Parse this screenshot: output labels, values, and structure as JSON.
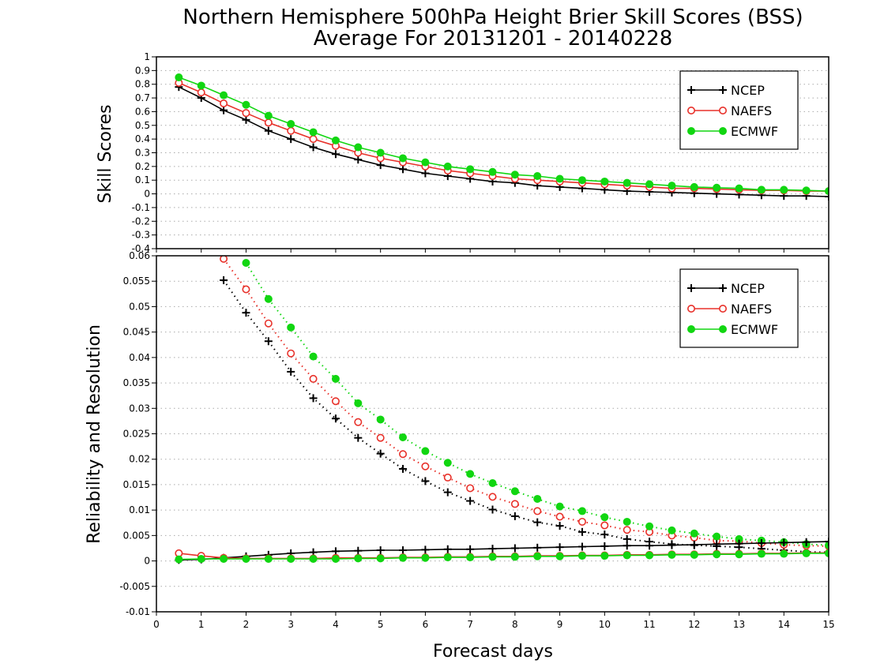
{
  "title": {
    "line1": "Northern Hemisphere 500hPa Height Brier Skill Scores (BSS)",
    "line2": "Average For 20131201 - 20140228"
  },
  "colors": {
    "NCEP": "#000000",
    "NAEFS": "#e8312a",
    "ECMWF": "#11d611"
  },
  "chart_data": [
    {
      "type": "line",
      "ylabel": "Skill Scores",
      "xlabel": "",
      "xlim": [
        0,
        15
      ],
      "ylim": [
        -0.4,
        1
      ],
      "grid": true,
      "legend_position": "top-right",
      "yticks": [
        -0.4,
        -0.3,
        -0.2,
        -0.1,
        0,
        0.1,
        0.2,
        0.3,
        0.4,
        0.5,
        0.6,
        0.7,
        0.8,
        0.9,
        1
      ],
      "ytick_labels": [
        "-0.4",
        "-0.3",
        "-0.2",
        "-0.1",
        "0",
        "0.1",
        "0.2",
        "0.3",
        "0.4",
        "0.5",
        "0.6",
        "0.7",
        "0.8",
        "0.9",
        "1"
      ],
      "x": [
        0.5,
        1,
        1.5,
        2,
        2.5,
        3,
        3.5,
        4,
        4.5,
        5,
        5.5,
        6,
        6.5,
        7,
        7.5,
        8,
        8.5,
        9,
        9.5,
        10,
        10.5,
        11,
        11.5,
        12,
        12.5,
        13,
        13.5,
        14,
        14.5,
        15
      ],
      "series": [
        {
          "name": "NCEP",
          "marker": "plus",
          "line": "solid",
          "values": [
            0.78,
            0.7,
            0.61,
            0.54,
            0.46,
            0.4,
            0.34,
            0.29,
            0.25,
            0.21,
            0.18,
            0.15,
            0.13,
            0.11,
            0.09,
            0.08,
            0.06,
            0.05,
            0.04,
            0.03,
            0.02,
            0.015,
            0.01,
            0.005,
            0.0,
            -0.005,
            -0.01,
            -0.015,
            -0.015,
            -0.02
          ]
        },
        {
          "name": "NAEFS",
          "marker": "open-circle",
          "line": "solid",
          "values": [
            0.81,
            0.74,
            0.66,
            0.59,
            0.52,
            0.46,
            0.4,
            0.35,
            0.3,
            0.26,
            0.23,
            0.2,
            0.17,
            0.15,
            0.13,
            0.11,
            0.1,
            0.09,
            0.08,
            0.07,
            0.06,
            0.05,
            0.04,
            0.04,
            0.035,
            0.03,
            0.025,
            0.025,
            0.02,
            0.02
          ]
        },
        {
          "name": "ECMWF",
          "marker": "filled-circle",
          "line": "solid",
          "values": [
            0.85,
            0.79,
            0.72,
            0.65,
            0.57,
            0.51,
            0.45,
            0.39,
            0.34,
            0.3,
            0.26,
            0.23,
            0.2,
            0.18,
            0.16,
            0.14,
            0.13,
            0.11,
            0.1,
            0.09,
            0.08,
            0.07,
            0.06,
            0.05,
            0.045,
            0.04,
            0.03,
            0.03,
            0.025,
            0.02
          ]
        }
      ]
    },
    {
      "type": "line",
      "ylabel": "Reliability and Resolution",
      "xlabel": "Forecast days",
      "xlim": [
        0,
        15
      ],
      "ylim": [
        -0.01,
        0.06
      ],
      "grid": true,
      "legend_position": "top-right",
      "xticks": [
        0,
        1,
        2,
        3,
        4,
        5,
        6,
        7,
        8,
        9,
        10,
        11,
        12,
        13,
        14,
        15
      ],
      "xtick_labels": [
        "0",
        "1",
        "2",
        "3",
        "4",
        "5",
        "6",
        "7",
        "8",
        "9",
        "10",
        "11",
        "12",
        "13",
        "14",
        "15"
      ],
      "yticks": [
        -0.01,
        -0.005,
        0,
        0.005,
        0.01,
        0.015,
        0.02,
        0.025,
        0.03,
        0.035,
        0.04,
        0.045,
        0.05,
        0.055,
        0.06
      ],
      "ytick_labels": [
        "-0.01",
        "-0.005",
        "0",
        "0.005",
        "0.01",
        "0.015",
        "0.02",
        "0.025",
        "0.03",
        "0.035",
        "0.04",
        "0.045",
        "0.05",
        "0.055",
        "0.06"
      ],
      "x": [
        0.5,
        1,
        1.5,
        2,
        2.5,
        3,
        3.5,
        4,
        4.5,
        5,
        5.5,
        6,
        6.5,
        7,
        7.5,
        8,
        8.5,
        9,
        9.5,
        10,
        10.5,
        11,
        11.5,
        12,
        12.5,
        13,
        13.5,
        14,
        14.5,
        15
      ],
      "series": [
        {
          "name": "NCEP",
          "marker": "plus",
          "line": "dotted",
          "values": [
            null,
            null,
            0.0552,
            0.0488,
            0.0432,
            0.0372,
            0.032,
            0.028,
            0.0242,
            0.0211,
            0.0181,
            0.0157,
            0.0135,
            0.0118,
            0.0101,
            0.0088,
            0.0076,
            0.0069,
            0.0057,
            0.0052,
            0.0043,
            0.0038,
            0.0033,
            0.0031,
            0.0029,
            0.0027,
            0.0024,
            0.0021,
            0.0018,
            0.0017
          ]
        },
        {
          "name": "NAEFS",
          "marker": "open-circle",
          "line": "dotted",
          "values": [
            null,
            null,
            0.0594,
            0.0534,
            0.0467,
            0.0408,
            0.0358,
            0.0314,
            0.0273,
            0.0242,
            0.021,
            0.0186,
            0.0164,
            0.0143,
            0.0126,
            0.0112,
            0.0098,
            0.0087,
            0.0077,
            0.007,
            0.0061,
            0.0057,
            0.005,
            0.0046,
            0.004,
            0.0039,
            0.0035,
            0.0032,
            0.003,
            0.0029
          ]
        },
        {
          "name": "ECMWF",
          "marker": "filled-circle",
          "line": "dotted",
          "values": [
            null,
            null,
            null,
            0.0586,
            0.0515,
            0.0459,
            0.0402,
            0.0358,
            0.031,
            0.0278,
            0.0243,
            0.0216,
            0.0193,
            0.0171,
            0.0153,
            0.0137,
            0.0122,
            0.0107,
            0.0098,
            0.0086,
            0.0077,
            0.0068,
            0.006,
            0.0054,
            0.0048,
            0.0043,
            0.004,
            0.0037,
            0.0033,
            0.0031
          ]
        },
        {
          "name": "NCEP",
          "marker": "plus",
          "line": "solid",
          "values": [
            0.0002,
            0.0003,
            0.0006,
            0.0009,
            0.0012,
            0.0015,
            0.0017,
            0.0019,
            0.002,
            0.0021,
            0.0021,
            0.0022,
            0.0023,
            0.0023,
            0.0024,
            0.0025,
            0.0026,
            0.0027,
            0.0028,
            0.0029,
            0.003,
            0.003,
            0.0031,
            0.0032,
            0.0033,
            0.0034,
            0.0035,
            0.0036,
            0.0037,
            0.0038
          ]
        },
        {
          "name": "NAEFS",
          "marker": "open-circle",
          "line": "solid",
          "values": [
            0.0015,
            0.001,
            0.0006,
            0.0005,
            0.0005,
            0.0005,
            0.0005,
            0.0006,
            0.0006,
            0.0006,
            0.0007,
            0.0007,
            0.0008,
            0.0008,
            0.0009,
            0.0009,
            0.001,
            0.001,
            0.0011,
            0.0011,
            0.0012,
            0.0012,
            0.0013,
            0.0013,
            0.0014,
            0.0014,
            0.0015,
            0.0015,
            0.0016,
            0.0016
          ]
        },
        {
          "name": "ECMWF",
          "marker": "filled-circle",
          "line": "solid",
          "values": [
            0.0003,
            0.0004,
            0.0004,
            0.0004,
            0.0004,
            0.0004,
            0.0004,
            0.0004,
            0.0005,
            0.0005,
            0.0006,
            0.0006,
            0.0007,
            0.0007,
            0.0008,
            0.0008,
            0.0009,
            0.0009,
            0.001,
            0.001,
            0.0011,
            0.0011,
            0.0012,
            0.0012,
            0.0013,
            0.0013,
            0.0014,
            0.0014,
            0.0015,
            0.0015
          ]
        }
      ]
    }
  ],
  "legend": [
    {
      "label": "NCEP",
      "marker": "plus"
    },
    {
      "label": "NAEFS",
      "marker": "open-circle"
    },
    {
      "label": "ECMWF",
      "marker": "filled-circle"
    }
  ]
}
